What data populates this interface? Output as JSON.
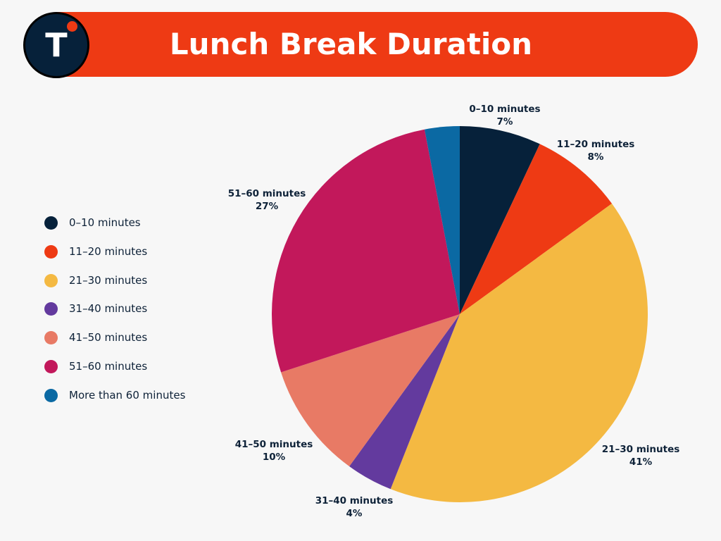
{
  "header": {
    "title": "Lunch Break Duration",
    "logo_letter": "T"
  },
  "colors": {
    "banner": "#ee3a14",
    "logo_bg": "#06213a",
    "logo_dot": "#ee3a14",
    "text": "#0e2238"
  },
  "chart_data": {
    "type": "pie",
    "title": "Lunch Break Duration",
    "legend_position": "left",
    "start_angle_deg": 0,
    "direction": "clockwise",
    "slices": [
      {
        "label": "0–10 minutes",
        "value": 7,
        "display": "7%",
        "color": "#06213a"
      },
      {
        "label": "11–20 minutes",
        "value": 8,
        "display": "8%",
        "color": "#ee3a14"
      },
      {
        "label": "21–30 minutes",
        "value": 41,
        "display": "41%",
        "color": "#f4b942"
      },
      {
        "label": "31–40 minutes",
        "value": 4,
        "display": "4%",
        "color": "#633a9e"
      },
      {
        "label": "41–50 minutes",
        "value": 10,
        "display": "10%",
        "color": "#e87a65"
      },
      {
        "label": "51–60 minutes",
        "value": 27,
        "display": "27%",
        "color": "#c2185b"
      },
      {
        "label": "More than 60 minutes",
        "value": 3,
        "display": "",
        "color": "#0b69a3"
      }
    ]
  }
}
